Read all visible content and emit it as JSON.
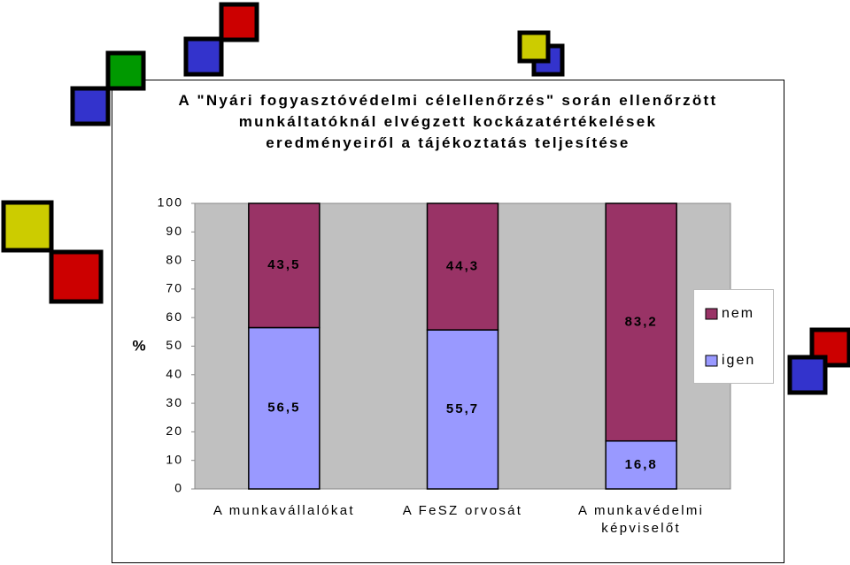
{
  "chart_data": {
    "type": "stacked_bar",
    "title": "A \"Nyári fogyasztóvédelmi célellenőrzés\" során ellenőrzött munkáltatóknál elvégzett kockázatértékelések eredményeiről a tájékoztatás teljesítése",
    "y_label": "%",
    "categories": [
      "A munkavállalókat",
      "A FeSZ orvosát",
      "A munkavédelmi képviselőt"
    ],
    "series": [
      {
        "name": "igen",
        "color": "#9999ff",
        "values": [
          56.5,
          55.7,
          16.8
        ],
        "value_labels": [
          "56,5",
          "55,7",
          "16,8"
        ]
      },
      {
        "name": "nem",
        "color": "#993366",
        "values": [
          43.5,
          44.3,
          83.2
        ],
        "value_labels": [
          "43,5",
          "44,3",
          "83,2"
        ]
      }
    ],
    "ylim": [
      0,
      100
    ],
    "yticks": [
      0,
      10,
      20,
      30,
      40,
      50,
      60,
      70,
      80,
      90,
      100
    ],
    "grid": false,
    "legend": "right",
    "plot_background": "#c0c0c0"
  }
}
